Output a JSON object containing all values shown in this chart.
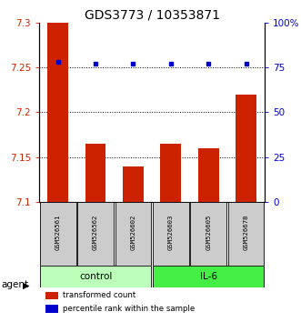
{
  "title": "GDS3773 / 10353871",
  "samples": [
    "GSM526561",
    "GSM526562",
    "GSM526602",
    "GSM526603",
    "GSM526605",
    "GSM526678"
  ],
  "bar_values": [
    7.3,
    7.165,
    7.14,
    7.165,
    7.16,
    7.22
  ],
  "percentile_values": [
    78,
    77,
    77,
    77,
    77,
    77
  ],
  "ylim_left": [
    7.1,
    7.3
  ],
  "ylim_right": [
    0,
    100
  ],
  "yticks_left": [
    7.1,
    7.15,
    7.2,
    7.25,
    7.3
  ],
  "yticks_right": [
    0,
    25,
    50,
    75,
    100
  ],
  "ytick_labels_right": [
    "0",
    "25",
    "50",
    "75",
    "100%"
  ],
  "bar_color": "#cc2200",
  "dot_color": "#0000cc",
  "groups": [
    {
      "label": "control",
      "color": "#bbffbb",
      "start": 0,
      "end": 2
    },
    {
      "label": "IL-6",
      "color": "#44ee44",
      "start": 3,
      "end": 5
    }
  ],
  "agent_label": "agent",
  "legend_items": [
    {
      "label": "transformed count",
      "color": "#cc2200"
    },
    {
      "label": "percentile rank within the sample",
      "color": "#0000cc"
    }
  ],
  "left_tick_color": "#cc2200",
  "right_tick_color": "#0000cc",
  "title_fontsize": 10,
  "tick_fontsize": 7.5,
  "bar_width": 0.55,
  "grid_yticks": [
    7.15,
    7.2,
    7.25
  ],
  "sample_box_color": "#cccccc",
  "figure_width": 3.31,
  "figure_height": 3.54,
  "figure_dpi": 100
}
